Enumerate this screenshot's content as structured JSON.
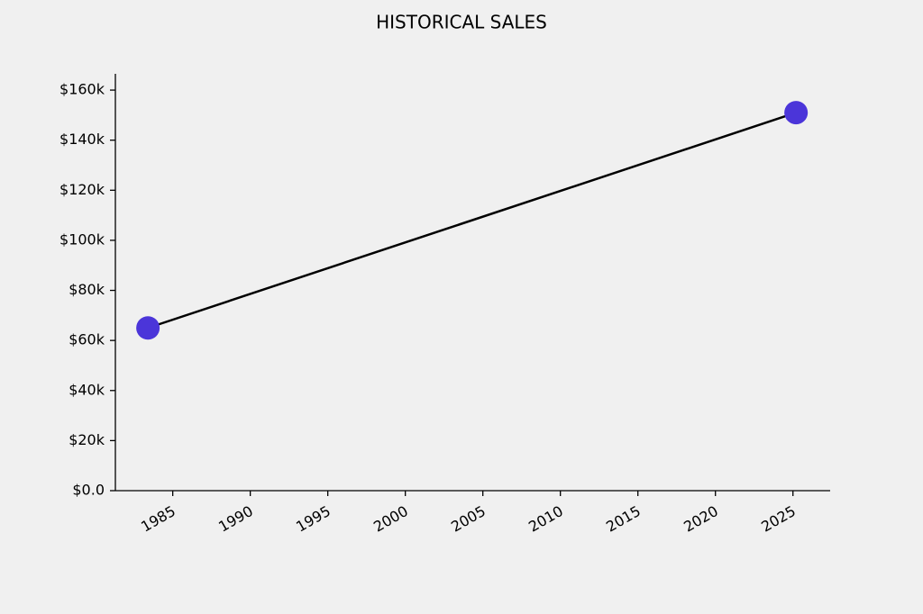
{
  "chart_data": {
    "type": "line",
    "title": "HISTORICAL SALES",
    "x": [
      1983.4,
      2025.2
    ],
    "values": [
      65000,
      151000
    ],
    "line_color": "#000000",
    "marker_color": "#4b35d9",
    "xlim": [
      1981.3,
      2027.4
    ],
    "xticks": [
      1985,
      1990,
      1995,
      2000,
      2005,
      2010,
      2015,
      2020,
      2025
    ],
    "ylim": [
      0,
      166500
    ],
    "yticks": [
      {
        "value": 0,
        "label": "$0.0"
      },
      {
        "value": 20000,
        "label": "$20k"
      },
      {
        "value": 40000,
        "label": "$40k"
      },
      {
        "value": 60000,
        "label": "$60k"
      },
      {
        "value": 80000,
        "label": "$80k"
      },
      {
        "value": 100000,
        "label": "$100k"
      },
      {
        "value": 120000,
        "label": "$120k"
      },
      {
        "value": 140000,
        "label": "$140k"
      },
      {
        "value": 160000,
        "label": "$160k"
      }
    ],
    "grid": false
  }
}
